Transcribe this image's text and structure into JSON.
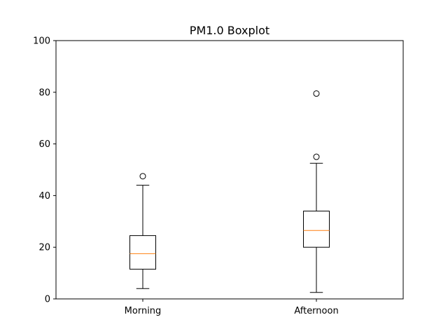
{
  "chart_data": {
    "type": "boxplot",
    "title": "PM1.0 Boxplot",
    "xlabel": "",
    "ylabel": "",
    "ylim": [
      0,
      100
    ],
    "yticks": [
      0,
      20,
      40,
      60,
      80,
      100
    ],
    "categories": [
      "Morning",
      "Afternoon"
    ],
    "boxes": [
      {
        "category": "Morning",
        "whisker_low": 4,
        "q1": 11.5,
        "median": 17.5,
        "q3": 24.5,
        "whisker_high": 44,
        "outliers": [
          47.5
        ]
      },
      {
        "category": "Afternoon",
        "whisker_low": 2.5,
        "q1": 20,
        "median": 26.5,
        "q3": 34,
        "whisker_high": 52.5,
        "outliers": [
          55,
          79.5
        ]
      }
    ],
    "grid": false,
    "colors": {
      "box": "#000000",
      "median": "#ff7f0e",
      "outlier": "#000000"
    }
  }
}
